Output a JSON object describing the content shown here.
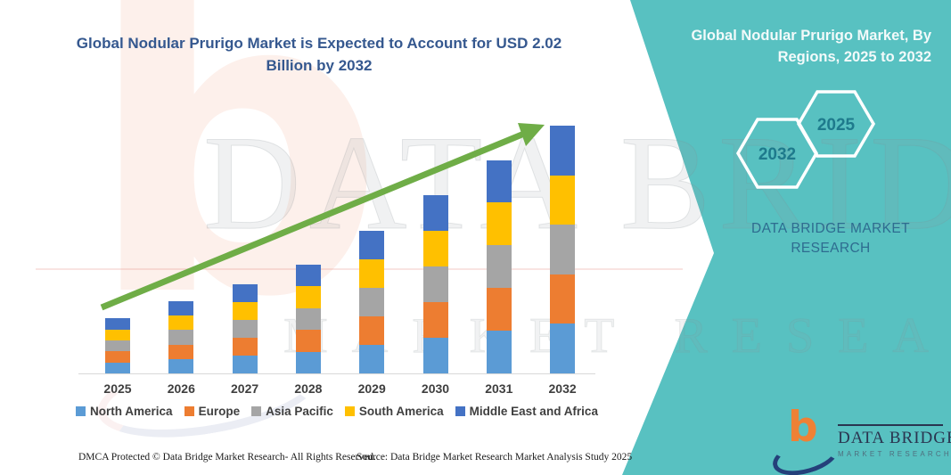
{
  "header": {
    "left_title": "Global Nodular Prurigo Market is Expected to Account for USD 2.02 Billion by 2032"
  },
  "side_panel": {
    "title": "Global Nodular Prurigo Market, By Regions, 2025 to 2032",
    "hexagons": [
      {
        "label": "2032"
      },
      {
        "label": "2025"
      }
    ],
    "caption": "DATA BRIDGE MARKET RESEARCH"
  },
  "watermark": {
    "line1": "DATA BRIDGE",
    "line2": "MARKET RESEARCH",
    "letter": "b"
  },
  "chart_data": {
    "type": "bar",
    "stacked": true,
    "title": "Global Nodular Prurigo Market, By Regions, 2025 to 2032",
    "categories": [
      "2025",
      "2026",
      "2027",
      "2028",
      "2029",
      "2030",
      "2031",
      "2032"
    ],
    "series": [
      {
        "name": "North America",
        "color": "#5B9BD5",
        "values": [
          0.09,
          0.118,
          0.146,
          0.178,
          0.232,
          0.29,
          0.348,
          0.404
        ]
      },
      {
        "name": "Europe",
        "color": "#ED7D31",
        "values": [
          0.09,
          0.118,
          0.146,
          0.178,
          0.232,
          0.29,
          0.348,
          0.404
        ]
      },
      {
        "name": "Asia Pacific",
        "color": "#A5A5A5",
        "values": [
          0.09,
          0.118,
          0.146,
          0.178,
          0.232,
          0.29,
          0.348,
          0.404
        ]
      },
      {
        "name": "South America",
        "color": "#FFC000",
        "values": [
          0.09,
          0.118,
          0.146,
          0.178,
          0.232,
          0.29,
          0.348,
          0.404
        ]
      },
      {
        "name": "Middle East and Africa",
        "color": "#4472C4",
        "values": [
          0.09,
          0.118,
          0.146,
          0.178,
          0.232,
          0.29,
          0.348,
          0.404
        ]
      }
    ],
    "totals_usd_billion": [
      0.45,
      0.59,
      0.73,
      0.89,
      1.16,
      1.45,
      1.74,
      2.02
    ],
    "xlabel": "",
    "ylabel": "",
    "ylim": [
      0,
      2.1
    ],
    "grid": false,
    "legend_position": "bottom",
    "annotations": [
      "USD 2.02 Billion by 2032"
    ],
    "trend_arrow": {
      "present": true,
      "color": "#6FAD47"
    }
  },
  "footer": {
    "dmca": "DMCA Protected © Data Bridge Market Research-  All Rights Reserved.",
    "source": "Source: Data Bridge Market Research  Market Analysis Study 2025"
  },
  "logo": {
    "title": "DATA BRIDGE",
    "subtitle": "MARKET RESEARCH"
  },
  "colors": {
    "panel_teal": "#58C1C1",
    "title_navy": "#35588F",
    "hexagon_label": "#1E7A8C",
    "caption_blue": "#2E6C90",
    "arrow_green": "#6FAD47",
    "axis_gray": "#D9D9D9",
    "logo_orange": "#EE8135",
    "logo_navy": "#24407A"
  }
}
